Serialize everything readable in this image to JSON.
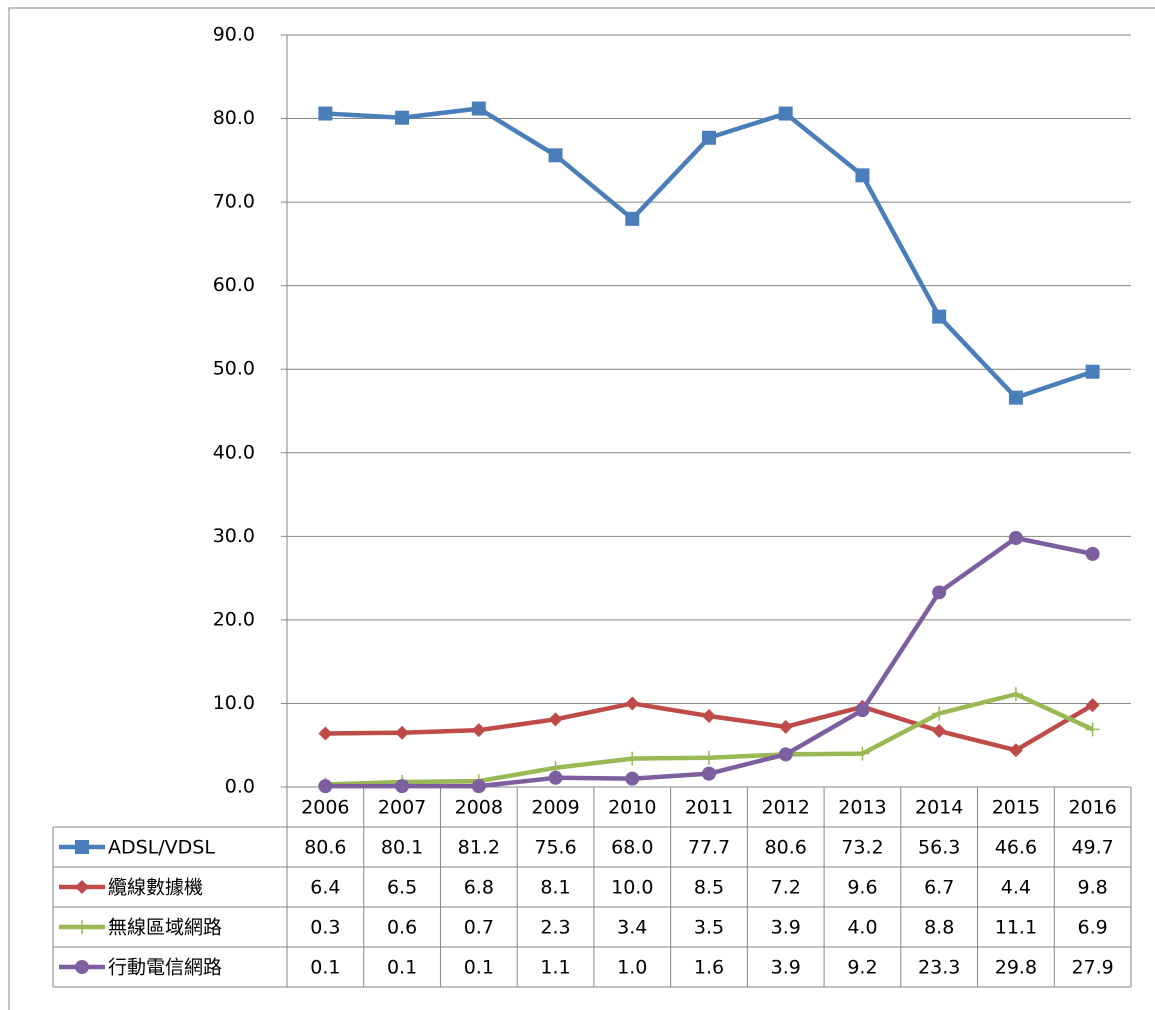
{
  "chart_data": {
    "type": "line",
    "categories": [
      "2006",
      "2007",
      "2008",
      "2009",
      "2010",
      "2011",
      "2012",
      "2013",
      "2014",
      "2015",
      "2016"
    ],
    "series": [
      {
        "name": "ADSL/VDSL",
        "color": "#4a7ebb",
        "marker": "square",
        "values": [
          80.6,
          80.1,
          81.2,
          75.6,
          68,
          77.7,
          80.6,
          73.2,
          56.3,
          46.6,
          49.7
        ],
        "value_labels": [
          "80.6",
          "80.1",
          "81.2",
          "75.6",
          "68.0",
          "77.7",
          "80.6",
          "73.2",
          "56.3",
          "46.6",
          "49.7"
        ]
      },
      {
        "name": "纜線數據機",
        "color": "#be4b48",
        "marker": "diamond",
        "values": [
          6.4,
          6.5,
          6.8,
          8.1,
          10,
          8.5,
          7.2,
          9.6,
          6.7,
          4.4,
          9.8
        ],
        "value_labels": [
          "6.4",
          "6.5",
          "6.8",
          "8.1",
          "10.0",
          "8.5",
          "7.2",
          "9.6",
          "6.7",
          "4.4",
          "9.8"
        ]
      },
      {
        "name": "無線區域網路",
        "color": "#98b954",
        "marker": "plus",
        "values": [
          0.3,
          0.6,
          0.7,
          2.3,
          3.4,
          3.5,
          3.9,
          4,
          8.8,
          11.1,
          6.9
        ],
        "value_labels": [
          "0.3",
          "0.6",
          "0.7",
          "2.3",
          "3.4",
          "3.5",
          "3.9",
          "4.0",
          "8.8",
          "11.1",
          "6.9"
        ]
      },
      {
        "name": "行動電信網路",
        "color": "#7d5fa0",
        "marker": "circle",
        "values": [
          0.1,
          0.1,
          0.1,
          1.1,
          1,
          1.6,
          3.9,
          9.2,
          23.3,
          29.8,
          27.9
        ],
        "value_labels": [
          "0.1",
          "0.1",
          "0.1",
          "1.1",
          "1.0",
          "1.6",
          "3.9",
          "9.2",
          "23.3",
          "29.8",
          "27.9"
        ]
      }
    ],
    "ylim": [
      0,
      90
    ],
    "yticks": [
      {
        "value": 0,
        "label": "0.0"
      },
      {
        "value": 10,
        "label": "10.0"
      },
      {
        "value": 20,
        "label": "20.0"
      },
      {
        "value": 30,
        "label": "30.0"
      },
      {
        "value": 40,
        "label": "40.0"
      },
      {
        "value": 50,
        "label": "50.0"
      },
      {
        "value": 60,
        "label": "60.0"
      },
      {
        "value": 70,
        "label": "70.0"
      },
      {
        "value": 80,
        "label": "80.0"
      },
      {
        "value": 90,
        "label": "90.0"
      }
    ],
    "grid": true,
    "data_table": true
  }
}
